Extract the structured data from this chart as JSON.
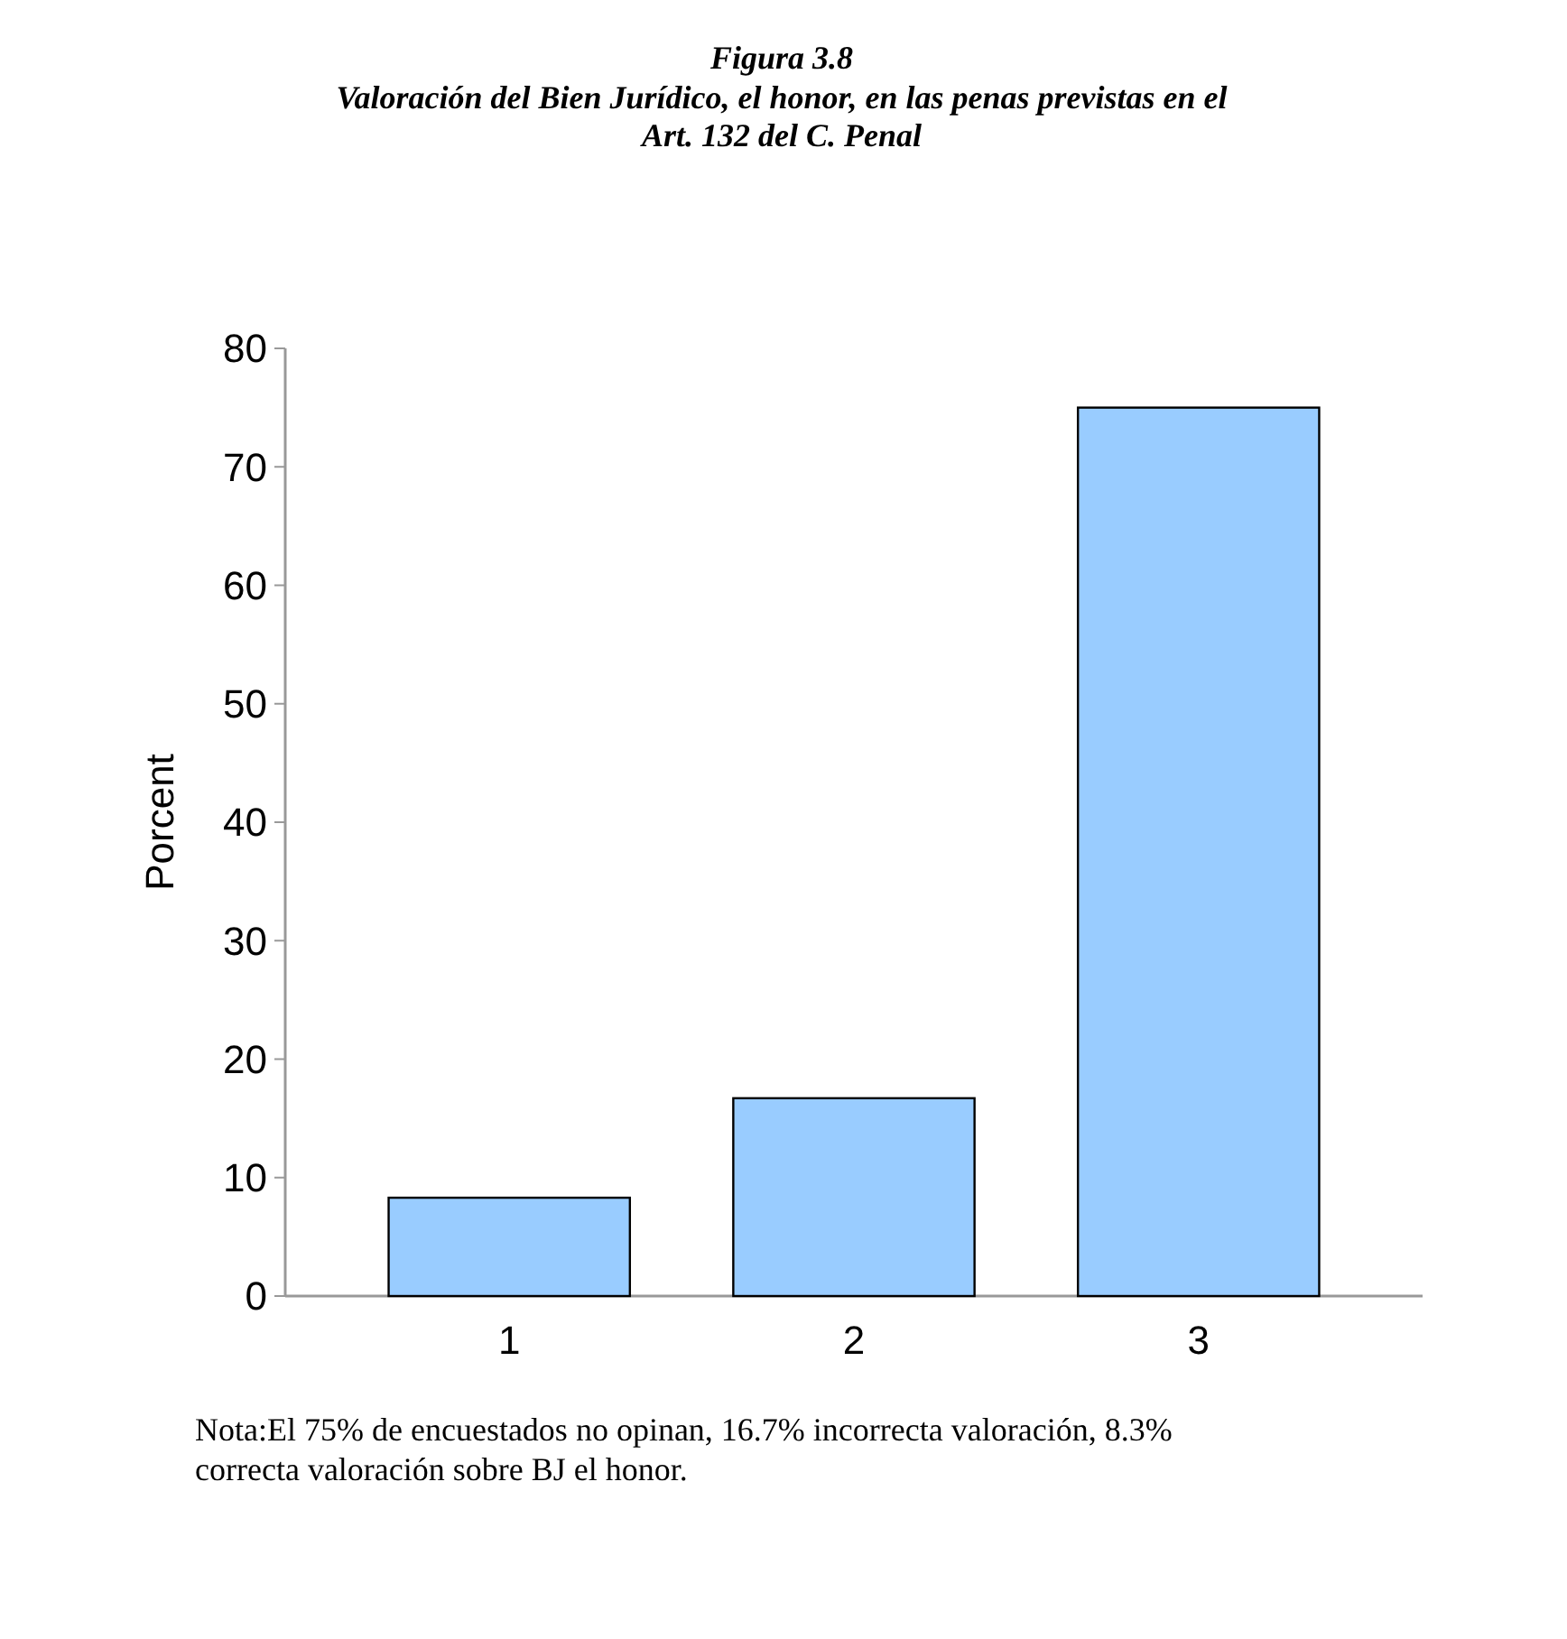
{
  "chart_data": {
    "type": "bar",
    "title": "Figura 3.8",
    "subtitle": "Valoración del Bien Jurídico, el honor, en las penas previstas en el Art. 132 del C. Penal",
    "ylabel": "Porcent",
    "categories": [
      "1",
      "2",
      "3"
    ],
    "values": [
      8.3,
      16.7,
      75
    ],
    "color": "#99ccff",
    "ylim": [
      0,
      80
    ],
    "yticks": [
      0,
      10,
      20,
      30,
      40,
      50,
      60,
      70,
      80
    ],
    "grid": false,
    "annotations": [
      "Nota:El 75% de encuestados no opinan, 16.7% incorrecta valoración, 8.3% correcta valoración sobre BJ el honor."
    ]
  }
}
